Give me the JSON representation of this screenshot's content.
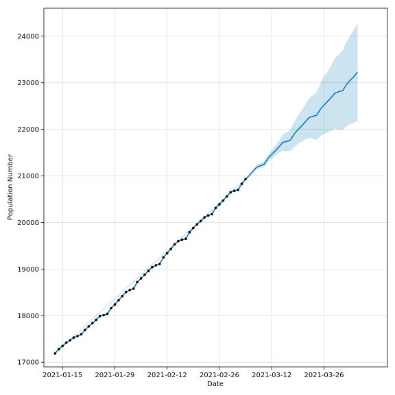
{
  "chart_data": {
    "type": "line",
    "title": "",
    "xlabel": "Date",
    "ylabel": "Population Number",
    "x_ticks": [
      "2021-01-15",
      "2021-01-29",
      "2021-02-12",
      "2021-02-26",
      "2021-03-12",
      "2021-03-26"
    ],
    "y_ticks": [
      17000,
      18000,
      19000,
      20000,
      21000,
      22000,
      23000,
      24000
    ],
    "xlim": [
      "2021-01-10",
      "2021-04-12"
    ],
    "ylim": [
      16900,
      24600
    ],
    "grid": true,
    "legend": "none",
    "colors": {
      "forecast_line": "#0072B2",
      "uncertainty_band": "#0072B2",
      "observed_points": "#000000"
    },
    "series": [
      {
        "type": "scatter",
        "points": [
          [
            "2021-01-13",
            17190
          ],
          [
            "2021-01-14",
            17280
          ],
          [
            "2021-01-15",
            17350
          ],
          [
            "2021-01-16",
            17420
          ],
          [
            "2021-01-17",
            17470
          ],
          [
            "2021-01-18",
            17530
          ],
          [
            "2021-01-19",
            17560
          ],
          [
            "2021-01-20",
            17600
          ],
          [
            "2021-01-21",
            17690
          ],
          [
            "2021-01-22",
            17770
          ],
          [
            "2021-01-23",
            17840
          ],
          [
            "2021-01-24",
            17910
          ],
          [
            "2021-01-25",
            17990
          ],
          [
            "2021-01-26",
            18010
          ],
          [
            "2021-01-27",
            18040
          ],
          [
            "2021-01-28",
            18160
          ],
          [
            "2021-01-29",
            18240
          ],
          [
            "2021-01-30",
            18330
          ],
          [
            "2021-01-31",
            18420
          ],
          [
            "2021-02-01",
            18510
          ],
          [
            "2021-02-02",
            18550
          ],
          [
            "2021-02-03",
            18580
          ],
          [
            "2021-02-04",
            18720
          ],
          [
            "2021-02-05",
            18800
          ],
          [
            "2021-02-06",
            18880
          ],
          [
            "2021-02-07",
            18960
          ],
          [
            "2021-02-08",
            19040
          ],
          [
            "2021-02-09",
            19080
          ],
          [
            "2021-02-10",
            19110
          ],
          [
            "2021-02-11",
            19250
          ],
          [
            "2021-02-12",
            19340
          ],
          [
            "2021-02-13",
            19430
          ],
          [
            "2021-02-14",
            19530
          ],
          [
            "2021-02-15",
            19600
          ],
          [
            "2021-02-16",
            19630
          ],
          [
            "2021-02-17",
            19650
          ],
          [
            "2021-02-18",
            19790
          ],
          [
            "2021-02-19",
            19880
          ],
          [
            "2021-02-20",
            19960
          ],
          [
            "2021-02-21",
            20030
          ],
          [
            "2021-02-22",
            20110
          ],
          [
            "2021-02-23",
            20150
          ],
          [
            "2021-02-24",
            20180
          ],
          [
            "2021-02-25",
            20310
          ],
          [
            "2021-02-26",
            20390
          ],
          [
            "2021-02-27",
            20470
          ],
          [
            "2021-02-28",
            20560
          ],
          [
            "2021-03-01",
            20650
          ],
          [
            "2021-03-02",
            20680
          ],
          [
            "2021-03-03",
            20700
          ],
          [
            "2021-03-04",
            20830
          ],
          [
            "2021-03-05",
            20930
          ]
        ]
      },
      {
        "type": "line",
        "points": [
          [
            "2021-01-13",
            17190
          ],
          [
            "2021-01-14",
            17280
          ],
          [
            "2021-01-15",
            17350
          ],
          [
            "2021-01-16",
            17420
          ],
          [
            "2021-01-17",
            17470
          ],
          [
            "2021-01-18",
            17530
          ],
          [
            "2021-01-19",
            17560
          ],
          [
            "2021-01-20",
            17600
          ],
          [
            "2021-01-21",
            17690
          ],
          [
            "2021-01-22",
            17770
          ],
          [
            "2021-01-23",
            17840
          ],
          [
            "2021-01-24",
            17910
          ],
          [
            "2021-01-25",
            17990
          ],
          [
            "2021-01-26",
            18010
          ],
          [
            "2021-01-27",
            18040
          ],
          [
            "2021-01-28",
            18160
          ],
          [
            "2021-01-29",
            18240
          ],
          [
            "2021-01-30",
            18330
          ],
          [
            "2021-01-31",
            18420
          ],
          [
            "2021-02-01",
            18510
          ],
          [
            "2021-02-02",
            18550
          ],
          [
            "2021-02-03",
            18580
          ],
          [
            "2021-02-04",
            18720
          ],
          [
            "2021-02-05",
            18800
          ],
          [
            "2021-02-06",
            18880
          ],
          [
            "2021-02-07",
            18960
          ],
          [
            "2021-02-08",
            19040
          ],
          [
            "2021-02-09",
            19080
          ],
          [
            "2021-02-10",
            19110
          ],
          [
            "2021-02-11",
            19250
          ],
          [
            "2021-02-12",
            19340
          ],
          [
            "2021-02-13",
            19430
          ],
          [
            "2021-02-14",
            19530
          ],
          [
            "2021-02-15",
            19600
          ],
          [
            "2021-02-16",
            19630
          ],
          [
            "2021-02-17",
            19650
          ],
          [
            "2021-02-18",
            19790
          ],
          [
            "2021-02-19",
            19880
          ],
          [
            "2021-02-20",
            19960
          ],
          [
            "2021-02-21",
            20030
          ],
          [
            "2021-02-22",
            20110
          ],
          [
            "2021-02-23",
            20150
          ],
          [
            "2021-02-24",
            20180
          ],
          [
            "2021-02-25",
            20310
          ],
          [
            "2021-02-26",
            20390
          ],
          [
            "2021-02-27",
            20470
          ],
          [
            "2021-02-28",
            20560
          ],
          [
            "2021-03-01",
            20650
          ],
          [
            "2021-03-02",
            20680
          ],
          [
            "2021-03-03",
            20700
          ],
          [
            "2021-03-04",
            20830
          ],
          [
            "2021-03-05",
            20930
          ],
          [
            "2021-03-06",
            21010
          ],
          [
            "2021-03-07",
            21100
          ],
          [
            "2021-03-08",
            21190
          ],
          [
            "2021-03-09",
            21220
          ],
          [
            "2021-03-10",
            21250
          ],
          [
            "2021-03-11",
            21380
          ],
          [
            "2021-03-12",
            21460
          ],
          [
            "2021-03-13",
            21540
          ],
          [
            "2021-03-14",
            21630
          ],
          [
            "2021-03-15",
            21720
          ],
          [
            "2021-03-16",
            21740
          ],
          [
            "2021-03-17",
            21770
          ],
          [
            "2021-03-18",
            21900
          ],
          [
            "2021-03-19",
            21990
          ],
          [
            "2021-03-20",
            22070
          ],
          [
            "2021-03-21",
            22160
          ],
          [
            "2021-03-22",
            22250
          ],
          [
            "2021-03-23",
            22280
          ],
          [
            "2021-03-24",
            22300
          ],
          [
            "2021-03-25",
            22430
          ],
          [
            "2021-03-26",
            22520
          ],
          [
            "2021-03-27",
            22600
          ],
          [
            "2021-03-28",
            22690
          ],
          [
            "2021-03-29",
            22780
          ],
          [
            "2021-03-30",
            22810
          ],
          [
            "2021-03-31",
            22830
          ],
          [
            "2021-04-01",
            22960
          ],
          [
            "2021-04-02",
            23050
          ],
          [
            "2021-04-03",
            23130
          ],
          [
            "2021-04-04",
            23230
          ]
        ]
      },
      {
        "type": "area",
        "x": [
          "2021-01-13",
          "2021-03-05",
          "2021-03-06",
          "2021-03-07",
          "2021-03-08",
          "2021-03-09",
          "2021-03-10",
          "2021-03-11",
          "2021-03-12",
          "2021-03-13",
          "2021-03-14",
          "2021-03-15",
          "2021-03-16",
          "2021-03-17",
          "2021-03-18",
          "2021-03-19",
          "2021-03-20",
          "2021-03-21",
          "2021-03-22",
          "2021-03-23",
          "2021-03-24",
          "2021-03-25",
          "2021-03-26",
          "2021-03-27",
          "2021-03-28",
          "2021-03-29",
          "2021-03-30",
          "2021-03-31",
          "2021-04-01",
          "2021-04-02",
          "2021-04-03",
          "2021-04-04"
        ],
        "lower": [
          17180,
          20910,
          20990,
          21070,
          21140,
          21170,
          21190,
          21300,
          21370,
          21430,
          21500,
          21540,
          21530,
          21530,
          21620,
          21680,
          21730,
          21790,
          21820,
          21800,
          21770,
          21850,
          21900,
          21930,
          21960,
          22010,
          21990,
          21980,
          22070,
          22110,
          22140,
          22180
        ],
        "upper": [
          17200,
          20950,
          21030,
          21130,
          21240,
          21270,
          21310,
          21450,
          21550,
          21650,
          21760,
          21880,
          21940,
          21990,
          22150,
          22290,
          22400,
          22530,
          22660,
          22730,
          22790,
          22980,
          23140,
          23240,
          23380,
          23530,
          23610,
          23690,
          23870,
          24010,
          24140,
          24270
        ]
      }
    ]
  }
}
